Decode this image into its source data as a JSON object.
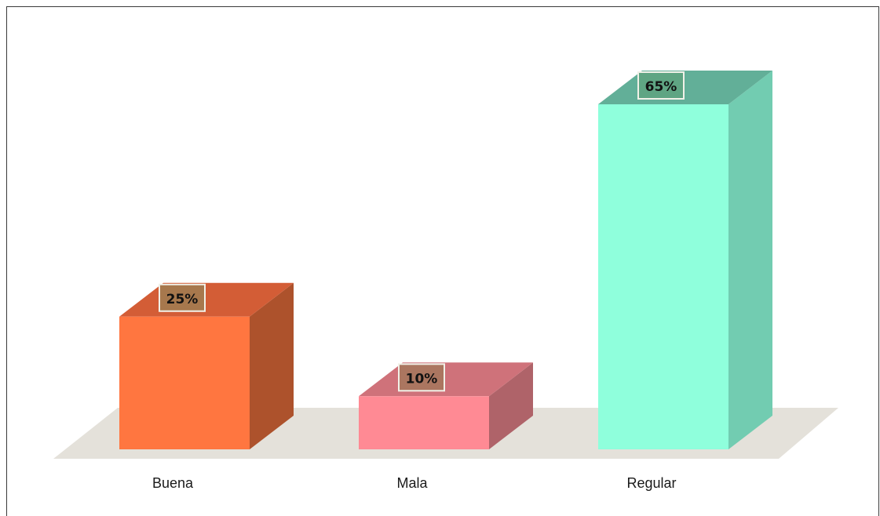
{
  "chart_data": {
    "type": "bar",
    "categories": [
      "Buena",
      "Mala",
      "Regular"
    ],
    "values": [
      25,
      10,
      65
    ],
    "value_suffix": "%",
    "ylim": [
      0,
      65
    ],
    "grid": false,
    "legend": "none",
    "three_d": true,
    "colors": {
      "front": [
        "#FF7640",
        "#FF8A94",
        "#8FFFDC"
      ],
      "side": [
        "#AD522C",
        "#AF6369",
        "#72CCB1"
      ],
      "top": [
        "#D35D36",
        "#CF727A",
        "#62AF98"
      ],
      "label_box": [
        "#A7784D",
        "#AB7660",
        "#5FA583"
      ],
      "floor": "#E4E1DA"
    }
  }
}
